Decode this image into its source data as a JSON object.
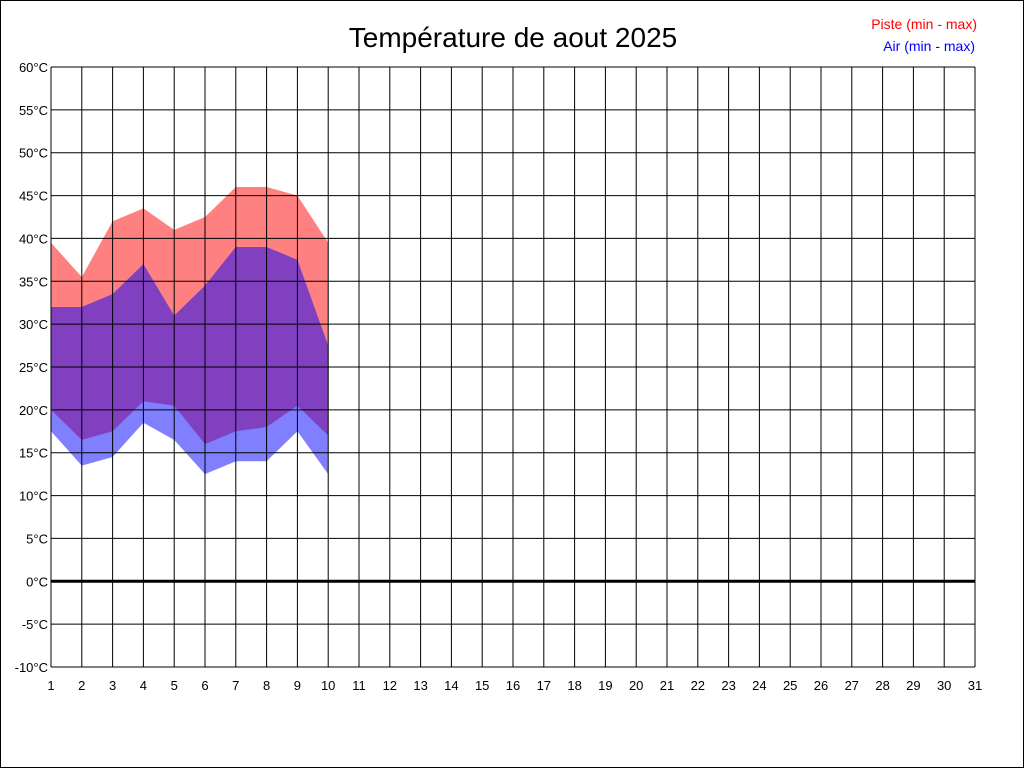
{
  "chart_data": {
    "type": "area",
    "title": "Température de aout 2025",
    "x_ticks": [
      "1",
      "2",
      "3",
      "4",
      "5",
      "6",
      "7",
      "8",
      "9",
      "10",
      "11",
      "12",
      "13",
      "14",
      "15",
      "16",
      "17",
      "18",
      "19",
      "20",
      "21",
      "22",
      "23",
      "24",
      "25",
      "26",
      "27",
      "28",
      "29",
      "30",
      "31"
    ],
    "y_ticks": [
      "60°C",
      "55°C",
      "50°C",
      "45°C",
      "40°C",
      "35°C",
      "30°C",
      "25°C",
      "20°C",
      "15°C",
      "10°C",
      "5°C",
      "0°C",
      "-5°C",
      "-10°C"
    ],
    "xlim": [
      1,
      31
    ],
    "ylim": [
      -10,
      60
    ],
    "grid": true,
    "legend_position": "top-right",
    "legend": [
      {
        "label": "Piste (min - max)",
        "color": "#ff0000"
      },
      {
        "label": "Air (min - max)",
        "color": "#0000ff"
      }
    ],
    "series": [
      {
        "name": "Piste (min - max)",
        "color": "#ff0000",
        "fill": "#ff8080",
        "x": [
          1,
          2,
          3,
          4,
          5,
          6,
          7,
          8,
          9,
          10
        ],
        "min": [
          20,
          16.5,
          17.5,
          21,
          20.5,
          16,
          17.5,
          18,
          20.5,
          17
        ],
        "max": [
          39.5,
          35.5,
          42,
          43.5,
          41,
          42.5,
          46,
          46,
          45,
          39.5
        ]
      },
      {
        "name": "Air (min - max)",
        "color": "#0000ff",
        "fill": "#8080ff",
        "x": [
          1,
          2,
          3,
          4,
          5,
          6,
          7,
          8,
          9,
          10
        ],
        "min": [
          17.5,
          13.5,
          14.5,
          18.5,
          16.5,
          12.5,
          14,
          14,
          17.5,
          12.5
        ],
        "max": [
          32,
          32,
          33.5,
          37,
          31,
          34.5,
          39,
          39,
          37.5,
          27.5
        ]
      }
    ],
    "overlap_fill": "#8040c0",
    "zero_line": 0
  }
}
